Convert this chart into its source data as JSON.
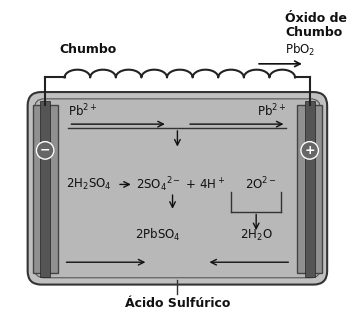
{
  "bg_color": "#ffffff",
  "battery_fill": "#c0c0c0",
  "battery_fill2": "#b8b8b8",
  "electrode_color": "#888888",
  "electrode_dark_color": "#555555",
  "label_chumbo": "Chumbo",
  "label_oxido_line1": "Óxido de",
  "label_oxido_line2": "Chumbo",
  "label_pbo2": "PbO$_2$",
  "label_acido": "Ácido Sulfúrico",
  "label_pb2_left": "Pb$^{2+}$",
  "label_pb2_right": "Pb$^{2+}$",
  "label_h2so4": "2H$_2$SO$_4$",
  "label_so4": "2SO$_4$$^{2-}$ + 4H$^+$",
  "label_2o2": "2O$^{2-}$",
  "label_2pbso4": "2PbSO$_4$",
  "label_2h2o": "2H$_2$O",
  "neg_sign": "−",
  "pos_sign": "+",
  "figsize": [
    3.62,
    3.28
  ],
  "dpi": 100
}
